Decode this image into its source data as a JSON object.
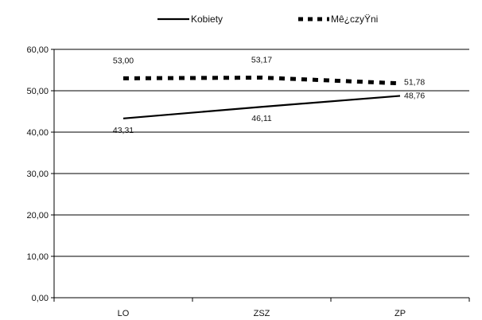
{
  "chart_data": {
    "type": "line",
    "categories": [
      "LO",
      "ZSZ",
      "ZP"
    ],
    "series": [
      {
        "name": "Kobiety",
        "values": [
          43.31,
          46.11,
          48.76
        ],
        "value_labels": [
          "43,31",
          "46,11",
          "48,76"
        ],
        "color": "#000000",
        "style": "solid"
      },
      {
        "name": "Mê¿czyŸni",
        "values": [
          53.0,
          53.17,
          51.78
        ],
        "value_labels": [
          "53,00",
          "53,17",
          "51,78"
        ],
        "color": "#000000",
        "style": "dashed"
      }
    ],
    "y_ticks": [
      "0,00",
      "10,00",
      "20,00",
      "30,00",
      "40,00",
      "50,00",
      "60,00"
    ],
    "ylim": [
      0,
      60
    ],
    "grid": true,
    "legend": "top-center"
  }
}
